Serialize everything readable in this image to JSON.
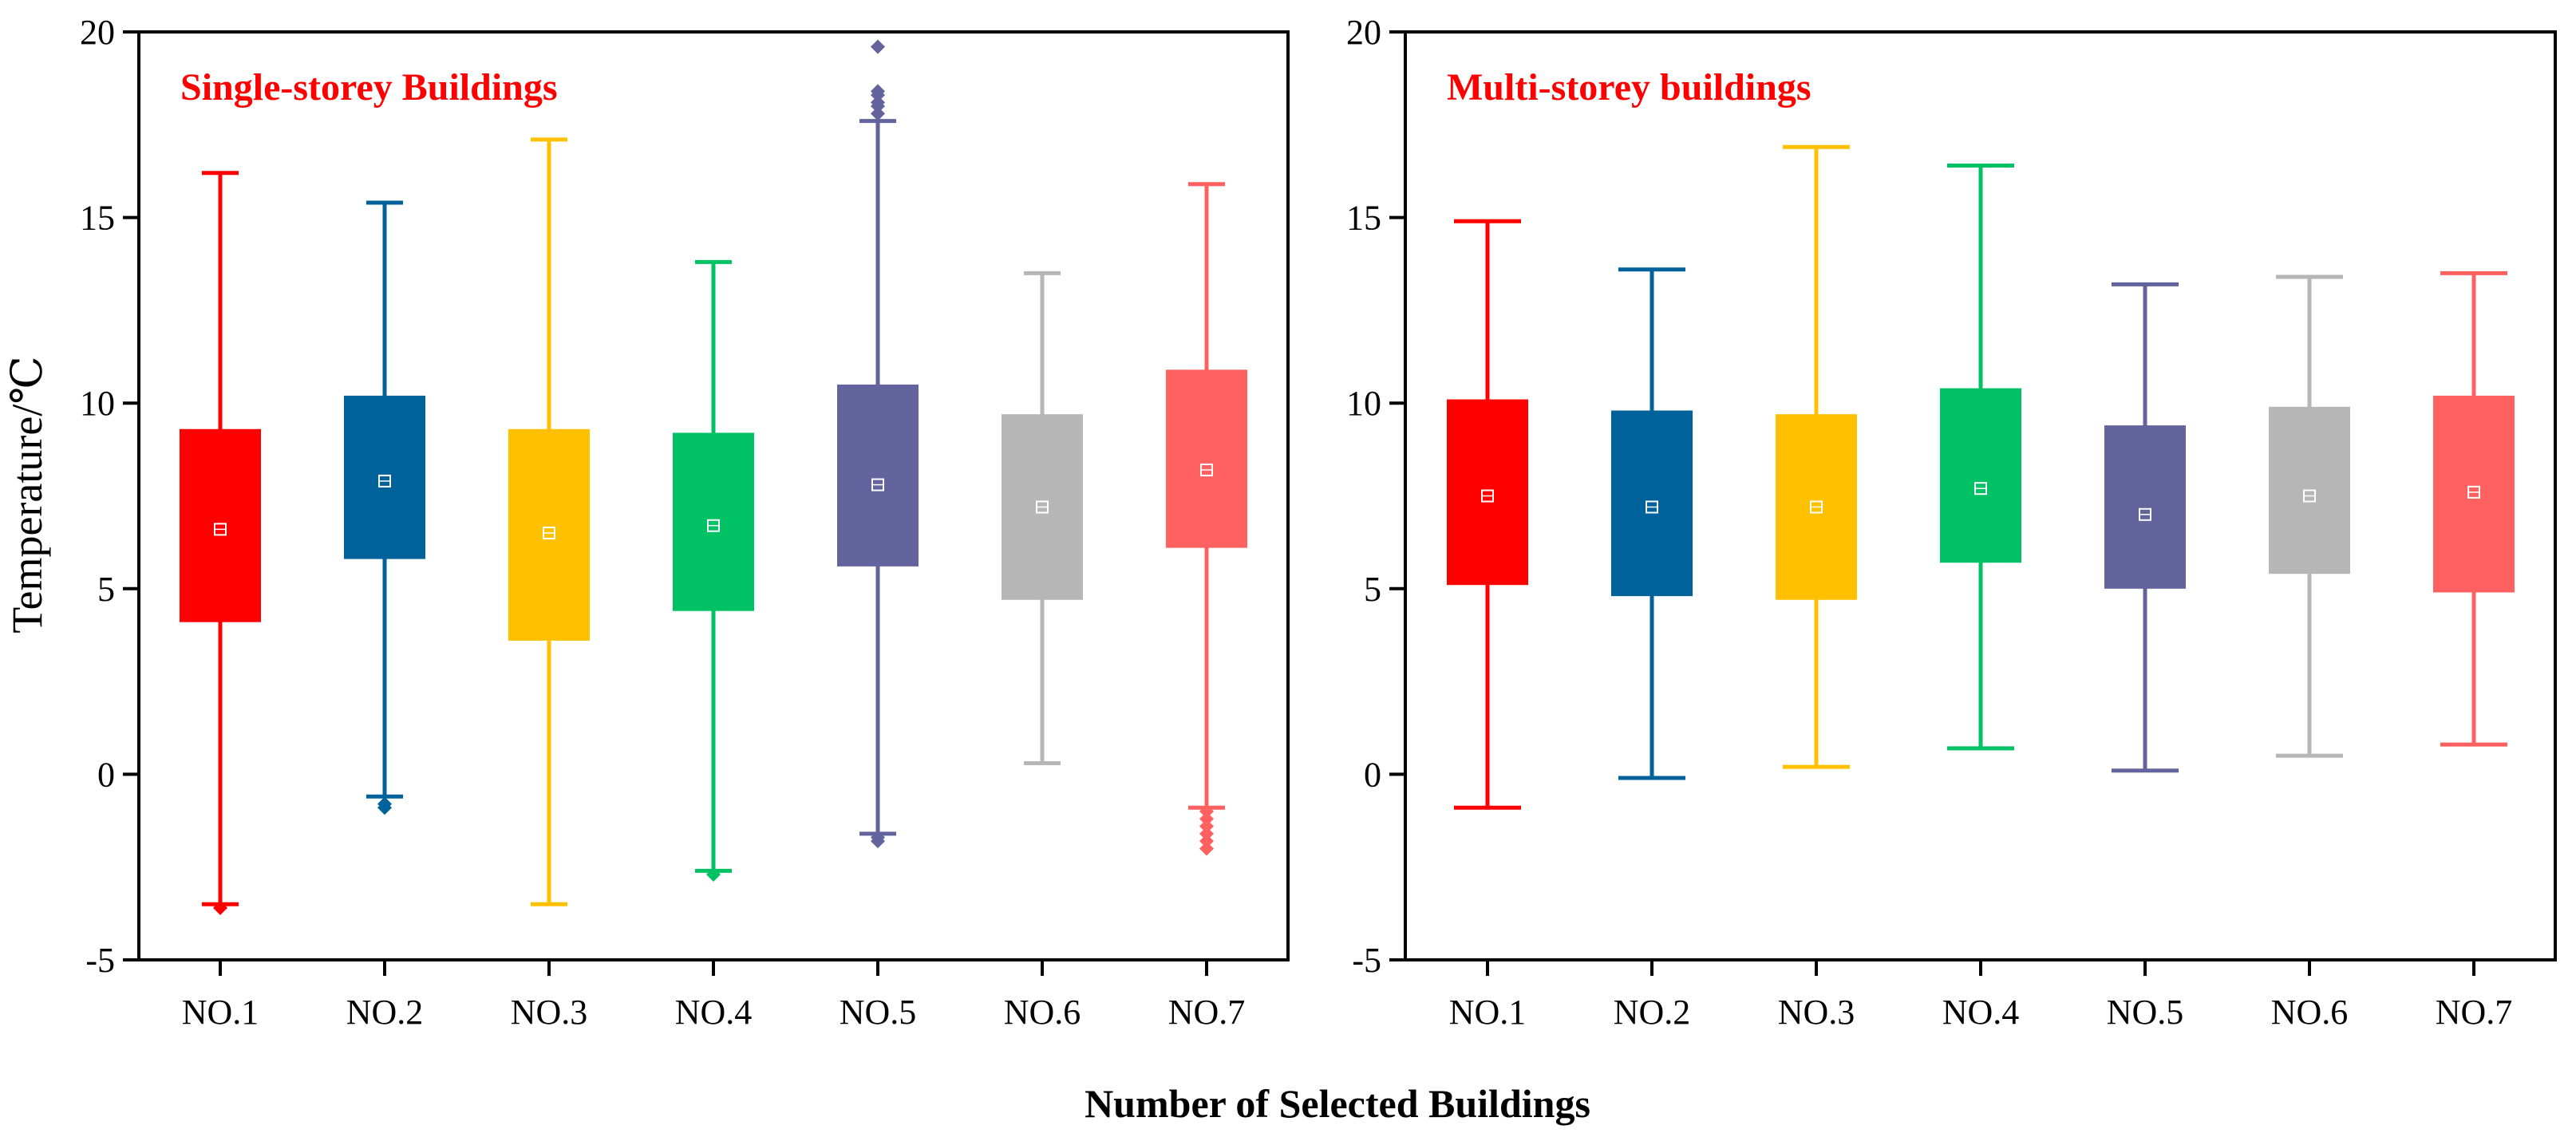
{
  "figure": {
    "ylabel": "Temperature/℃",
    "xlabel": "Number of Selected Buildings",
    "title_color": "#ff0000"
  },
  "chart_data": [
    {
      "type": "box",
      "title": "Single-storey Buildings",
      "ylim": [
        -5,
        20
      ],
      "yticks": [
        -5,
        0,
        5,
        10,
        15,
        20
      ],
      "categories": [
        "NO.1",
        "NO.2",
        "NO.3",
        "NO.4",
        "NO.5",
        "NO.6",
        "NO.7"
      ],
      "colors": [
        "#ff0000",
        "#00629b",
        "#ffc000",
        "#00c264",
        "#63639e",
        "#b6b6b6",
        "#ff6161"
      ],
      "boxes": [
        {
          "whisker_low": -3.5,
          "q1": 4.1,
          "q3": 9.3,
          "mean": 6.6,
          "whisker_high": 16.2,
          "outliers": [
            -3.6
          ]
        },
        {
          "whisker_low": -0.6,
          "q1": 5.8,
          "q3": 10.2,
          "mean": 7.9,
          "whisker_high": 15.4,
          "outliers": [
            -0.8,
            -0.9
          ]
        },
        {
          "whisker_low": -3.5,
          "q1": 3.6,
          "q3": 9.3,
          "mean": 6.5,
          "whisker_high": 17.1,
          "outliers": []
        },
        {
          "whisker_low": -2.6,
          "q1": 4.4,
          "q3": 9.2,
          "mean": 6.7,
          "whisker_high": 13.8,
          "outliers": [
            -2.7
          ]
        },
        {
          "whisker_low": -1.6,
          "q1": 5.6,
          "q3": 10.5,
          "mean": 7.8,
          "whisker_high": 17.6,
          "outliers": [
            -1.7,
            -1.8,
            17.8,
            18.0,
            18.1,
            18.3,
            18.4,
            19.6
          ]
        },
        {
          "whisker_low": 0.3,
          "q1": 4.7,
          "q3": 9.7,
          "mean": 7.2,
          "whisker_high": 13.5,
          "outliers": []
        },
        {
          "whisker_low": -0.9,
          "q1": 6.1,
          "q3": 10.9,
          "mean": 8.2,
          "whisker_high": 15.9,
          "outliers": [
            -1.0,
            -1.2,
            -1.4,
            -1.6,
            -1.8,
            -2.0
          ]
        }
      ]
    },
    {
      "type": "box",
      "title": "Multi-storey buildings",
      "ylim": [
        -5,
        20
      ],
      "yticks": [
        -5,
        0,
        5,
        10,
        15,
        20
      ],
      "categories": [
        "NO.1",
        "NO.2",
        "NO.3",
        "NO.4",
        "NO.5",
        "NO.6",
        "NO.7"
      ],
      "colors": [
        "#ff0000",
        "#00629b",
        "#ffc000",
        "#00c264",
        "#63639e",
        "#b6b6b6",
        "#ff6161"
      ],
      "boxes": [
        {
          "whisker_low": -0.9,
          "q1": 5.1,
          "q3": 10.1,
          "mean": 7.5,
          "whisker_high": 14.9,
          "outliers": []
        },
        {
          "whisker_low": -0.1,
          "q1": 4.8,
          "q3": 9.8,
          "mean": 7.2,
          "whisker_high": 13.6,
          "outliers": []
        },
        {
          "whisker_low": 0.2,
          "q1": 4.7,
          "q3": 9.7,
          "mean": 7.2,
          "whisker_high": 16.9,
          "outliers": []
        },
        {
          "whisker_low": 0.7,
          "q1": 5.7,
          "q3": 10.4,
          "mean": 7.7,
          "whisker_high": 16.4,
          "outliers": []
        },
        {
          "whisker_low": 0.1,
          "q1": 5.0,
          "q3": 9.4,
          "mean": 7.0,
          "whisker_high": 13.2,
          "outliers": []
        },
        {
          "whisker_low": 0.5,
          "q1": 5.4,
          "q3": 9.9,
          "mean": 7.5,
          "whisker_high": 13.4,
          "outliers": []
        },
        {
          "whisker_low": 0.8,
          "q1": 4.9,
          "q3": 10.2,
          "mean": 7.6,
          "whisker_high": 13.5,
          "outliers": []
        }
      ]
    }
  ]
}
